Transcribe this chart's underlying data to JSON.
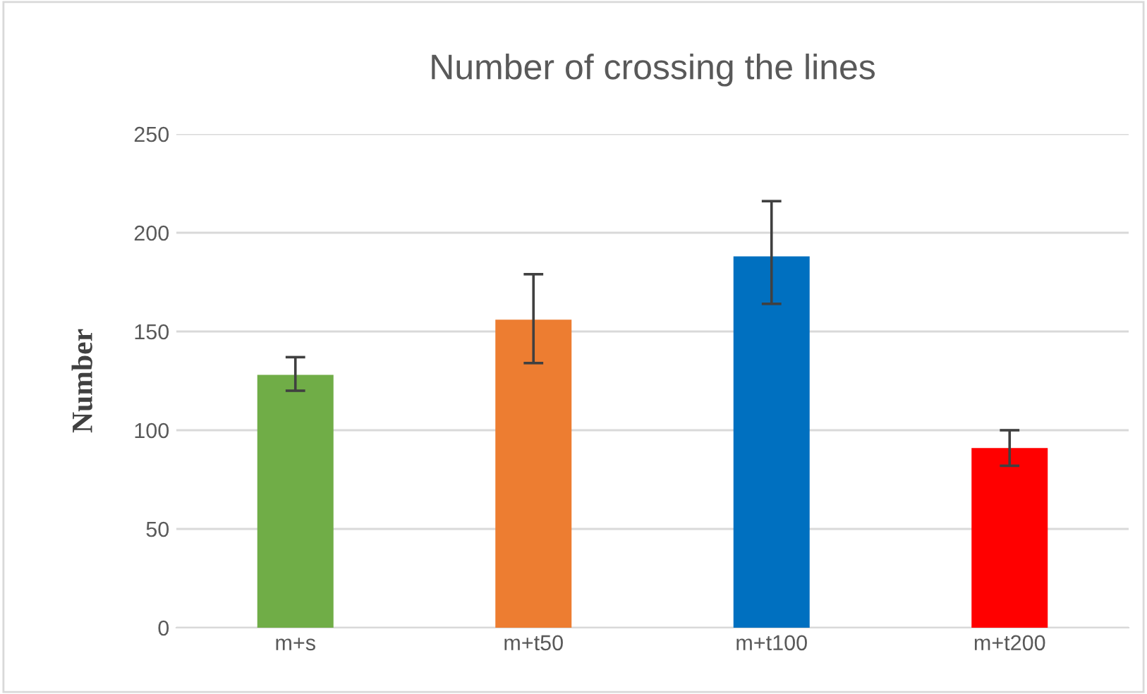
{
  "chart_data": {
    "type": "bar",
    "title": "Number of crossing the lines",
    "ylabel": "Number",
    "categories": [
      "m+s",
      "m+t50",
      "m+t100",
      "m+t200"
    ],
    "values": [
      128,
      156,
      188,
      91
    ],
    "colors": [
      "#70ad47",
      "#ed7d31",
      "#0070c0",
      "#ff0000"
    ],
    "errors": [
      [
        120,
        137
      ],
      [
        134,
        179
      ],
      [
        164,
        216
      ],
      [
        82,
        100
      ]
    ],
    "ylim": [
      0,
      250
    ],
    "yticks": [
      0,
      50,
      100,
      150,
      200,
      250
    ],
    "grid": "y",
    "legend": false
  }
}
